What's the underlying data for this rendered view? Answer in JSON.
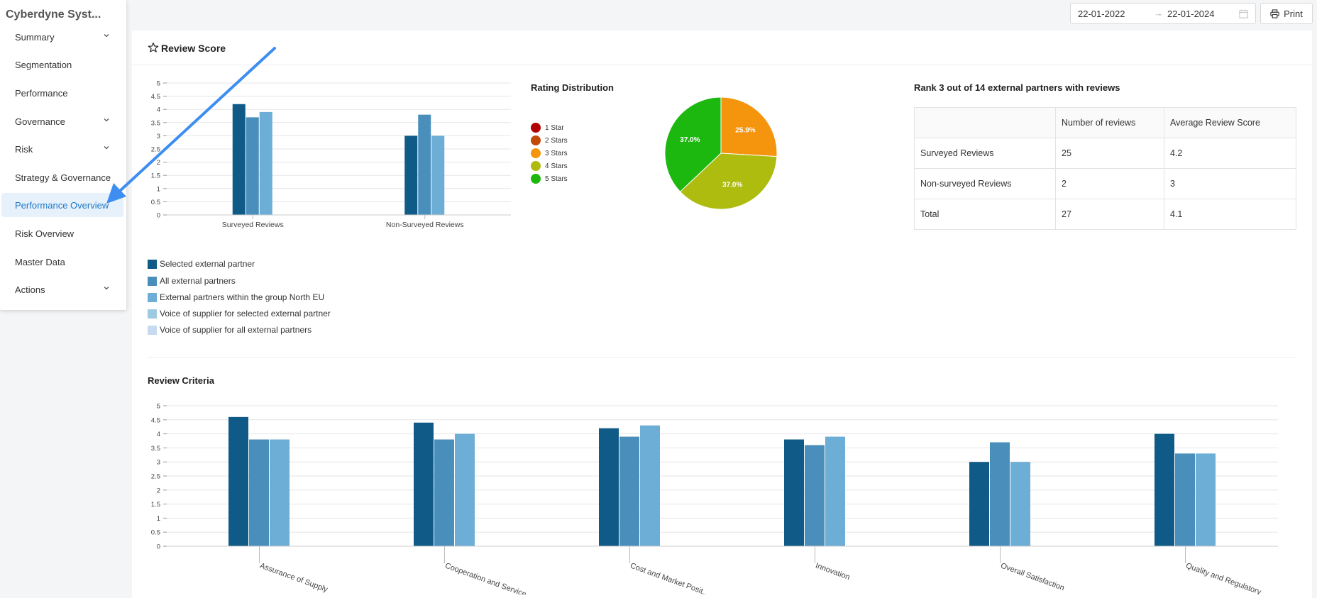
{
  "sidebar": {
    "brand": "Cyberdyne Syst...",
    "items": [
      {
        "label": "Summary"
      },
      {
        "label": "Segmentation"
      },
      {
        "label": "Performance"
      },
      {
        "label": "Governance"
      },
      {
        "label": "Risk"
      },
      {
        "label": "Strategy & Governance"
      },
      {
        "label": "Performance Overview"
      },
      {
        "label": "Risk Overview"
      },
      {
        "label": "Master Data"
      },
      {
        "label": "Actions"
      }
    ]
  },
  "toolbar": {
    "date_from": "22-01-2022",
    "date_to": "22-01-2024",
    "date_arrow": "→",
    "print_label": "Print"
  },
  "card": {
    "title": "Review Score"
  },
  "legend": {
    "items": [
      {
        "label": "Selected external partner",
        "color": "#0f5a87"
      },
      {
        "label": "All external partners",
        "color": "#4a8fbb"
      },
      {
        "label": "External partners within the group North EU",
        "color": "#6caed6"
      },
      {
        "label": "Voice of supplier for selected external partner",
        "color": "#9ecae1"
      },
      {
        "label": "Voice of supplier for all external partners",
        "color": "#c6dbef"
      }
    ]
  },
  "rating_distribution": {
    "title": "Rating Distribution",
    "items": [
      {
        "label": "1 Star",
        "color": "#b20000"
      },
      {
        "label": "2 Stars",
        "color": "#c24a0b"
      },
      {
        "label": "3 Stars",
        "color": "#f5940d"
      },
      {
        "label": "4 Stars",
        "color": "#aebc10"
      },
      {
        "label": "5 Stars",
        "color": "#1db80f"
      }
    ]
  },
  "rank": {
    "title": "Rank 3 out of 14 external partners with reviews",
    "headers": [
      "",
      "Number of reviews",
      "Average Review Score"
    ],
    "rows": [
      [
        "Surveyed Reviews",
        "25",
        "4.2"
      ],
      [
        "Non-surveyed Reviews",
        "2",
        "3"
      ],
      [
        "Total",
        "27",
        "4.1"
      ]
    ]
  },
  "review_criteria": {
    "title": "Review Criteria"
  },
  "chart_data": [
    {
      "type": "bar",
      "title": "",
      "categories": [
        "Surveyed Reviews",
        "Non-Surveyed Reviews"
      ],
      "series": [
        {
          "name": "Selected external partner",
          "values": [
            4.2,
            3.0
          ]
        },
        {
          "name": "All external partners",
          "values": [
            3.7,
            3.8
          ]
        },
        {
          "name": "External partners within the group North EU",
          "values": [
            3.9,
            3.0
          ]
        }
      ],
      "ylim": [
        0,
        5
      ],
      "yticks": [
        "0",
        "0.5",
        "1",
        "1.5",
        "2",
        "2.5",
        "3",
        "3.5",
        "4",
        "4.5",
        "5"
      ]
    },
    {
      "type": "pie",
      "title": "Rating Distribution",
      "labels": [
        "1 Star",
        "2 Stars",
        "3 Stars",
        "4 Stars",
        "5 Stars"
      ],
      "values": [
        0,
        0,
        25.9,
        37.0,
        37.0
      ],
      "value_labels": [
        "",
        "",
        "25.9%",
        "37.0%",
        "37.0%"
      ]
    },
    {
      "type": "bar",
      "title": "Review Criteria",
      "categories": [
        "Assurance of Supply",
        "Cooperation and Service",
        "Cost and Market Posit...",
        "Innovation",
        "Overall Satisfaction",
        "Quality and Regulatory"
      ],
      "series": [
        {
          "name": "Selected external partner",
          "values": [
            4.6,
            4.4,
            4.2,
            3.8,
            3.0,
            4.0
          ]
        },
        {
          "name": "All external partners",
          "values": [
            3.8,
            3.8,
            3.9,
            3.6,
            3.7,
            3.3
          ]
        },
        {
          "name": "External partners within the group North EU",
          "values": [
            3.8,
            4.0,
            4.3,
            3.9,
            3.0,
            3.3
          ]
        }
      ],
      "ylim": [
        0,
        5
      ],
      "yticks": [
        "0",
        "0.5",
        "1",
        "1.5",
        "2",
        "2.5",
        "3",
        "3.5",
        "4",
        "4.5",
        "5"
      ]
    }
  ]
}
